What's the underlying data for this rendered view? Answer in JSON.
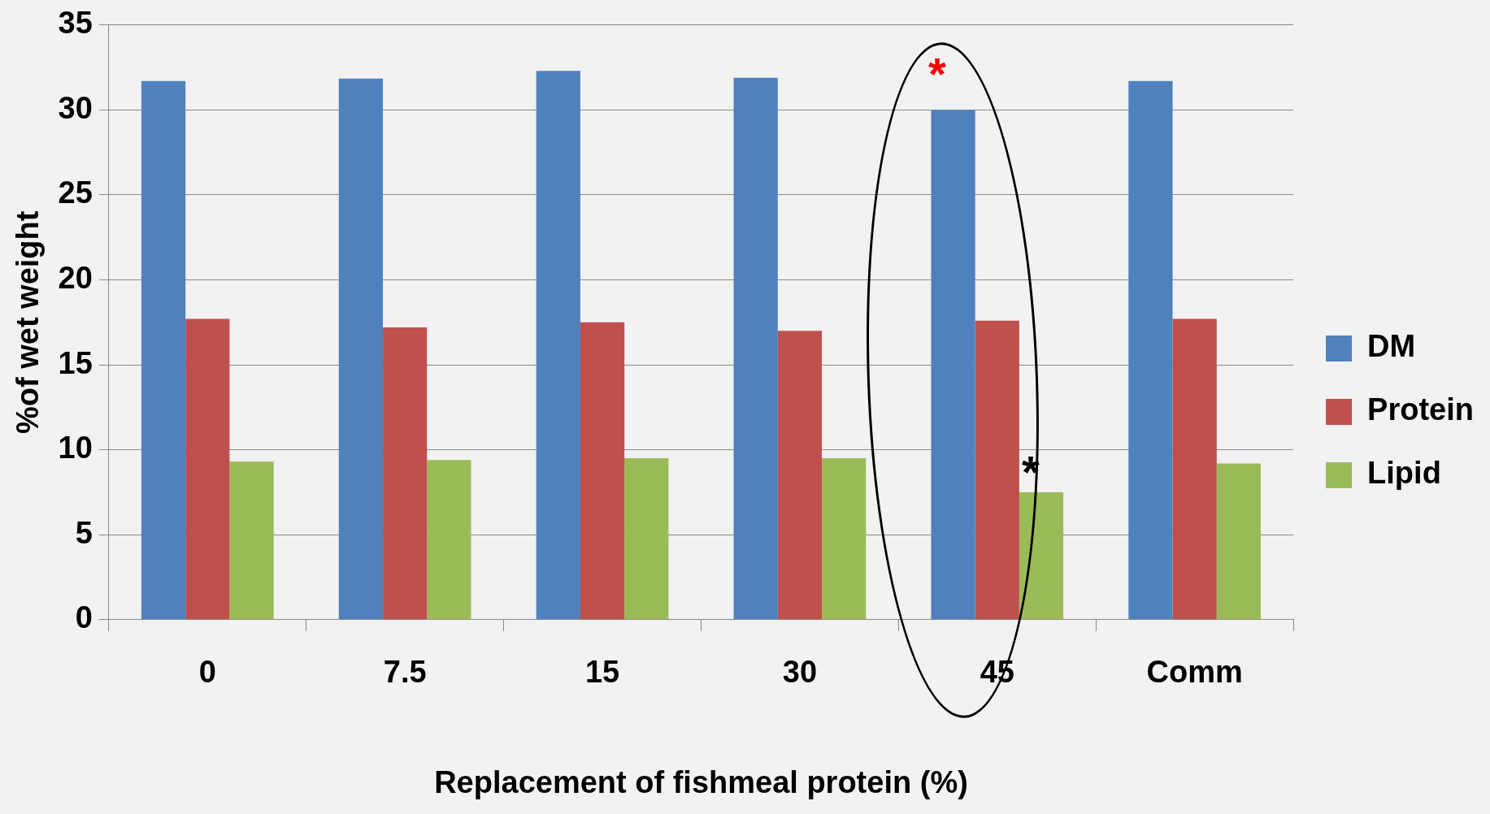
{
  "chart_data": {
    "type": "bar",
    "xlabel": "Replacement of fishmeal protein (%)",
    "ylabel": "%of wet weight",
    "categories": [
      "0",
      "7.5",
      "15",
      "30",
      "45",
      "Comm"
    ],
    "series": [
      {
        "name": "DM",
        "color": "#4f81bd",
        "values": [
          31.7,
          31.85,
          32.3,
          31.9,
          30.0,
          31.7
        ]
      },
      {
        "name": "Protein",
        "color": "#c0504d",
        "values": [
          17.7,
          17.2,
          17.5,
          17.0,
          17.6,
          17.7
        ]
      },
      {
        "name": "Lipid",
        "color": "#9bbb59",
        "values": [
          9.3,
          9.4,
          9.5,
          9.5,
          7.5,
          9.2
        ]
      }
    ],
    "ylim": [
      0,
      35
    ],
    "yticks": [
      0,
      5,
      10,
      15,
      20,
      25,
      30,
      35
    ],
    "grid": "y",
    "legend": "right",
    "annotations": [
      "*",
      "*"
    ]
  }
}
